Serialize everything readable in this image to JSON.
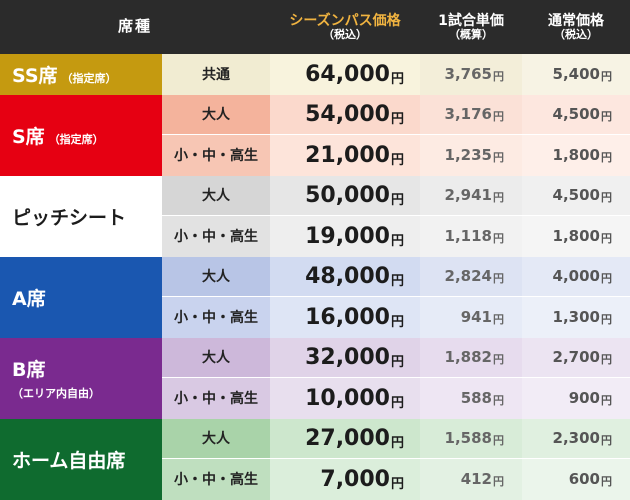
{
  "header": {
    "seat": "席種",
    "season_main": "シーズンパス価格",
    "season_sub": "（税込）",
    "single_main": "1試合単価",
    "single_sub": "（概算）",
    "regular_main": "通常価格",
    "regular_sub": "（税込）"
  },
  "yen": "円",
  "colors": {
    "header_bg": "#2b2b2b",
    "season_header": "#f0b340",
    "ss": "#c59a10",
    "s": "#e60012",
    "pitch": "#ffffff",
    "a": "#1a57b0",
    "b": "#7a2a8f",
    "home": "#0f6b2f"
  },
  "groups": [
    {
      "name": "SS席",
      "note": "（指定席）",
      "sub": "",
      "rows": [
        {
          "category": "共通",
          "season": "64,000",
          "single": "3,765",
          "regular": "5,400"
        }
      ]
    },
    {
      "name": "S席",
      "note": "（指定席）",
      "sub": "",
      "rows": [
        {
          "category": "大人",
          "season": "54,000",
          "single": "3,176",
          "regular": "4,500"
        },
        {
          "category": "小・中・高生",
          "season": "21,000",
          "single": "1,235",
          "regular": "1,800"
        }
      ]
    },
    {
      "name": "ピッチシート",
      "note": "",
      "sub": "",
      "rows": [
        {
          "category": "大人",
          "season": "50,000",
          "single": "2,941",
          "regular": "4,500"
        },
        {
          "category": "小・中・高生",
          "season": "19,000",
          "single": "1,118",
          "regular": "1,800"
        }
      ]
    },
    {
      "name": "A席",
      "note": "",
      "sub": "",
      "rows": [
        {
          "category": "大人",
          "season": "48,000",
          "single": "2,824",
          "regular": "4,000"
        },
        {
          "category": "小・中・高生",
          "season": "16,000",
          "single": "941",
          "regular": "1,300"
        }
      ]
    },
    {
      "name": "B席",
      "note": "",
      "sub": "（エリア内自由）",
      "rows": [
        {
          "category": "大人",
          "season": "32,000",
          "single": "1,882",
          "regular": "2,700"
        },
        {
          "category": "小・中・高生",
          "season": "10,000",
          "single": "588",
          "regular": "900"
        }
      ]
    },
    {
      "name": "ホーム自由席",
      "note": "",
      "sub": "",
      "rows": [
        {
          "category": "大人",
          "season": "27,000",
          "single": "1,588",
          "regular": "2,300"
        },
        {
          "category": "小・中・高生",
          "season": "7,000",
          "single": "412",
          "regular": "600"
        }
      ]
    }
  ]
}
